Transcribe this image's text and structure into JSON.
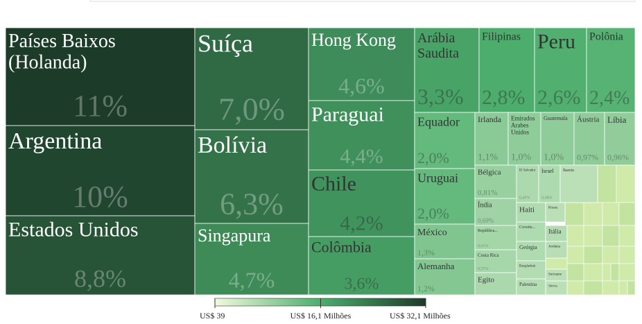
{
  "chart_data": {
    "type": "treemap",
    "categories": [
      "Países Baixos (Holanda)",
      "Argentina",
      "Estados Unidos",
      "Suíça",
      "Bolívia",
      "Singapura",
      "Hong Kong",
      "Paraguai",
      "Chile",
      "Colômbia",
      "Arábia Saudita",
      "Filipinas",
      "Peru",
      "Polônia",
      "Equador",
      "Irlanda",
      "Emirados Arabes Unidos",
      "Guatemala",
      "Áustria",
      "Líbia",
      "Uruguai",
      "México",
      "Alemanha",
      "Bélgica",
      "Índia",
      "República...",
      "Costa Rica",
      "Egito",
      "El Salvador",
      "Israel",
      "Barein",
      "Haiti",
      "Rússia",
      "Coveite...",
      "Geórgia",
      "Bangladesh",
      "Palestina",
      "Itália",
      "Jordânia",
      "Suriname",
      "Sérvia"
    ],
    "values": [
      11,
      10,
      8.8,
      7.0,
      6.3,
      4.7,
      4.6,
      4.4,
      4.2,
      3.6,
      3.3,
      2.8,
      2.6,
      2.4,
      2.0,
      1.1,
      1.0,
      1.0,
      0.97,
      0.96,
      2.0,
      1.3,
      1.2,
      0.81,
      0.69,
      0.61,
      0.57,
      0.5,
      0.49,
      0.48,
      0.3,
      0.45,
      0.3,
      0.45,
      0.45,
      0.4,
      0.38,
      0.4,
      0.35,
      0.3,
      0.3
    ],
    "value_labels": [
      "11%",
      "10%",
      "8,8%",
      "7,0%",
      "6,3%",
      "4,7%",
      "4,6%",
      "4,4%",
      "4,2%",
      "3,6%",
      "3,3%",
      "2,8%",
      "2,6%",
      "2,4%",
      "2,0%",
      "1,1%",
      "1,0%",
      "1,0%",
      "0,97%",
      "0,96%",
      "2,0%",
      "1,3%",
      "1,2%",
      "0,81%",
      "0,69%",
      "0,61%",
      "0,57%",
      null,
      "0,49%",
      "0,48%",
      null,
      null,
      null,
      null,
      null,
      null,
      null,
      null,
      null,
      null,
      null
    ],
    "colorscale": {
      "colors": [
        "#f2f9dd",
        "#4cae6d",
        "#1d3b29"
      ],
      "ticks": [
        {
          "value": 39,
          "label": "US$ 39"
        },
        {
          "value": 16100000,
          "label": "US$ 16,1 Milhões"
        },
        {
          "value": 32100000,
          "label": "US$ 32,1 Milhões"
        }
      ]
    }
  }
}
